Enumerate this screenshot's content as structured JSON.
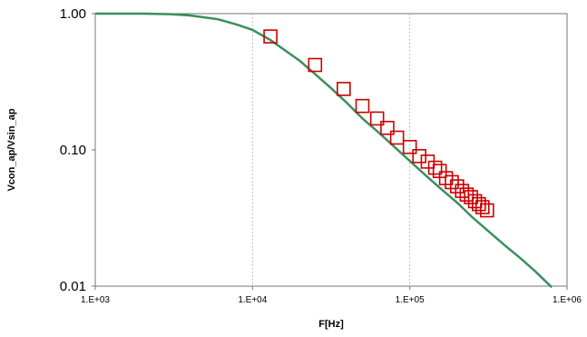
{
  "chart_data": {
    "type": "scatter",
    "title": "",
    "xlabel": "F[Hz]",
    "ylabel": "Vcon_ap/Vsin_ap",
    "x_scale": "log",
    "y_scale": "log",
    "xlim": [
      1000,
      1000000
    ],
    "ylim": [
      0.01,
      1.0
    ],
    "x_ticks": [
      "1.E+03",
      "1.E+04",
      "1.E+05",
      "1.E+06"
    ],
    "y_ticks": [
      "1.00",
      "0.10",
      "0.01"
    ],
    "grid": {
      "vertical": "dashed",
      "horizontal": "none"
    },
    "legend": "none",
    "series": [
      {
        "kind": "line",
        "color": "#3a8f5f",
        "x": [
          1000,
          2000,
          3000,
          4000,
          6000,
          8000,
          10000,
          13000,
          16000,
          20000,
          25000,
          32000,
          40000,
          50000,
          63000,
          80000,
          100000,
          130000,
          160000,
          200000,
          250000,
          320000,
          400000,
          500000,
          630000,
          800000
        ],
        "y": [
          1.0,
          1.0,
          0.99,
          0.97,
          0.91,
          0.83,
          0.76,
          0.64,
          0.54,
          0.45,
          0.36,
          0.28,
          0.22,
          0.17,
          0.135,
          0.105,
          0.083,
          0.063,
          0.051,
          0.041,
          0.032,
          0.025,
          0.02,
          0.0162,
          0.0128,
          0.0098
        ]
      },
      {
        "kind": "markers",
        "marker": "square",
        "color": "#cc0000",
        "x": [
          13000,
          25000,
          38000,
          50000,
          62000,
          72000,
          83000,
          100000,
          115000,
          130000,
          145000,
          155000,
          170000,
          185000,
          200000,
          215000,
          230000,
          245000,
          260000,
          275000,
          290000,
          310000
        ],
        "y": [
          0.68,
          0.42,
          0.28,
          0.21,
          0.17,
          0.145,
          0.123,
          0.105,
          0.09,
          0.082,
          0.074,
          0.07,
          0.062,
          0.058,
          0.054,
          0.05,
          0.047,
          0.045,
          0.042,
          0.04,
          0.038,
          0.036
        ]
      }
    ]
  }
}
